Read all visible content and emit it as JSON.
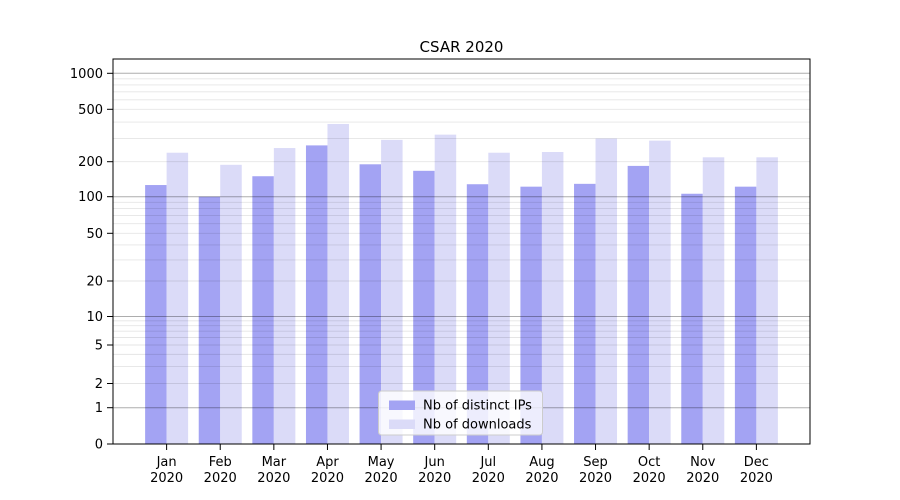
{
  "figure": {
    "background": "#ffffff",
    "plot_border_color": "#000000"
  },
  "chart_data": {
    "type": "bar",
    "title": "CSAR 2020",
    "categories": [
      "Jan 2020",
      "Feb 2020",
      "Mar 2020",
      "Apr 2020",
      "May 2020",
      "Jun 2020",
      "Jul 2020",
      "Aug 2020",
      "Sep 2020",
      "Oct 2020",
      "Nov 2020",
      "Dec 2020"
    ],
    "series": [
      {
        "name": "Nb of distinct IPs",
        "color": "#a3a3f3",
        "values": [
          126,
          100,
          150,
          266,
          190,
          167,
          128,
          122,
          129,
          184,
          106,
          122
        ]
      },
      {
        "name": "Nb of downloads",
        "color": "#dbdbf8",
        "values": [
          234,
          188,
          254,
          387,
          293,
          321,
          234,
          237,
          300,
          289,
          216,
          216
        ]
      }
    ],
    "xlabel": "",
    "ylabel": "",
    "yscale": "symlog",
    "yticks": [
      0,
      1,
      2,
      5,
      10,
      20,
      50,
      100,
      200,
      500,
      1000
    ],
    "ylim": [
      0,
      1300
    ],
    "grid": "major gridlines at powers of 10 (darker), minor log gridlines 2-9 per decade (light)",
    "legend_position": "lower center",
    "legend_border_color": "#cccccc",
    "legend_background": "rgba(255,255,255,0.8)"
  }
}
